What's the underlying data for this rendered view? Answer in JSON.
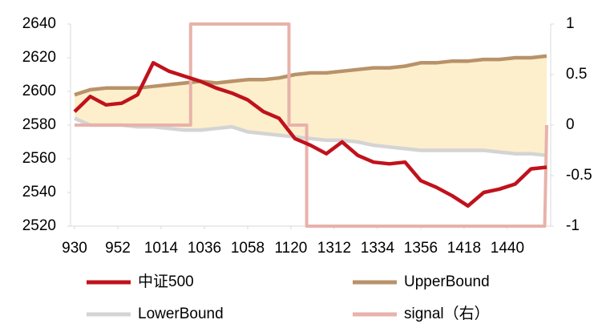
{
  "chart_data": {
    "type": "line",
    "x": [
      0,
      8,
      16,
      24,
      32,
      40,
      48,
      56,
      64,
      72,
      80,
      88,
      96,
      104,
      112,
      120,
      128,
      136,
      144,
      152,
      160,
      168,
      176,
      184,
      192,
      200,
      208,
      216,
      224,
      232,
      240
    ],
    "xlim": [
      0,
      240
    ],
    "xticks": [
      {
        "value": 0,
        "label": "930"
      },
      {
        "value": 22,
        "label": "952"
      },
      {
        "value": 44,
        "label": "1014"
      },
      {
        "value": 66,
        "label": "1036"
      },
      {
        "value": 88,
        "label": "1058"
      },
      {
        "value": 110,
        "label": "1120"
      },
      {
        "value": 132,
        "label": "1312"
      },
      {
        "value": 154,
        "label": "1334"
      },
      {
        "value": 176,
        "label": "1356"
      },
      {
        "value": 198,
        "label": "1418"
      },
      {
        "value": 220,
        "label": "1440"
      }
    ],
    "ylim": [
      2520,
      2640
    ],
    "yticks": [
      2520,
      2540,
      2560,
      2580,
      2600,
      2620,
      2640
    ],
    "y2lim": [
      -1,
      1
    ],
    "y2ticks": [
      -1,
      -0.5,
      0,
      0.5,
      1
    ],
    "band_fill": "#fdefcc",
    "series": [
      {
        "name": "中证500",
        "color": "#c0121c",
        "values": [
          2588,
          2597,
          2592,
          2593,
          2598,
          2617,
          2612,
          2609,
          2606,
          2602,
          2599,
          2595,
          2588,
          2584,
          2572,
          2568,
          2563,
          2570,
          2562,
          2558,
          2557,
          2558,
          2547,
          2543,
          2538,
          2532,
          2540,
          2542,
          2545,
          2554,
          2555
        ]
      },
      {
        "name": "UpperBound",
        "color": "#b8926a",
        "values": [
          2598,
          2601,
          2602,
          2602,
          2602,
          2603,
          2604,
          2605,
          2606,
          2605,
          2606,
          2607,
          2607,
          2608,
          2610,
          2611,
          2611,
          2612,
          2613,
          2614,
          2614,
          2615,
          2617,
          2617,
          2618,
          2618,
          2619,
          2619,
          2620,
          2620,
          2621
        ]
      },
      {
        "name": "LowerBound",
        "color": "#d4d4d4",
        "values": [
          2584,
          2580,
          2580,
          2580,
          2579,
          2579,
          2578,
          2577,
          2577,
          2578,
          2579,
          2576,
          2575,
          2574,
          2573,
          2572,
          2571,
          2571,
          2570,
          2568,
          2567,
          2566,
          2565,
          2565,
          2565,
          2565,
          2565,
          2564,
          2563,
          2563,
          2562
        ]
      },
      {
        "name": "signal（右）",
        "color": "#e8b2aa",
        "axis": "y2",
        "x": [
          0,
          59,
          59,
          109,
          109,
          118,
          118,
          239,
          240
        ],
        "values": [
          0,
          0,
          1,
          1,
          0,
          0,
          -1,
          -1,
          0
        ]
      }
    ]
  }
}
